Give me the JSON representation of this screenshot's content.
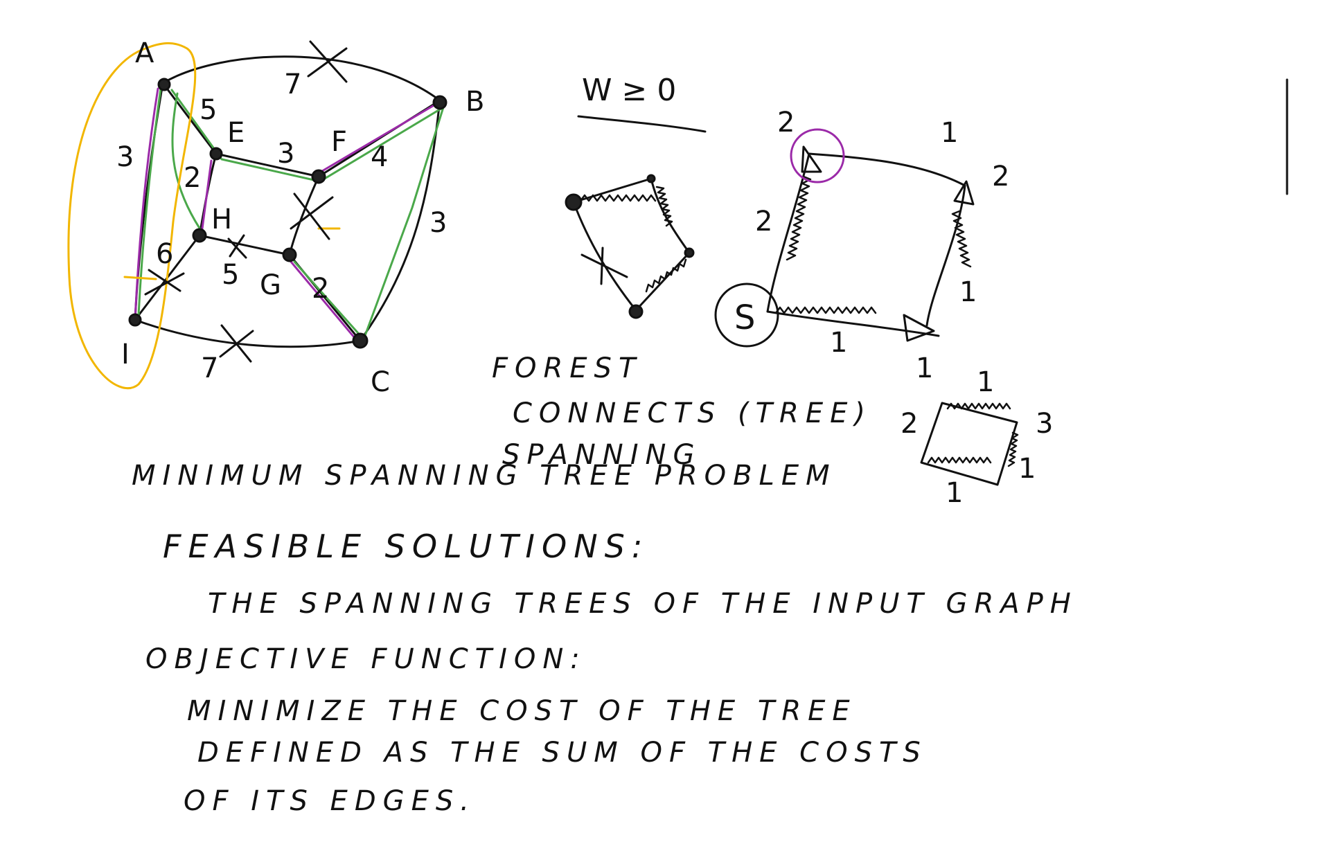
{
  "main_graph": {
    "node_labels": [
      "A",
      "B",
      "C",
      "E",
      "F",
      "H",
      "G",
      "I"
    ],
    "edge_weights": [
      "7",
      "3",
      "5",
      "3",
      "4",
      "2",
      "3",
      "2",
      "6",
      "5",
      "7"
    ]
  },
  "condition": "W ≥ 0",
  "cycle_graph": {
    "edge_weights": [
      "2",
      "1",
      "2",
      "2",
      "1",
      "1",
      "1"
    ],
    "node_label": "S"
  },
  "small_square": {
    "edge_weights": [
      "1",
      "3",
      "1",
      "1",
      "2"
    ]
  },
  "notes": {
    "forest": "FOREST",
    "connects": "CONNECTS (TREE)",
    "spanning": "SPANNING",
    "problem": "MINIMUM SPANNING TREE PROBLEM",
    "feasible": "FEASIBLE SOLUTIONS:",
    "feasible_desc": "THE SPANNING TREES OF THE INPUT GRAPH",
    "objective": "OBJECTIVE FUNCTION:",
    "obj_line1": "MINIMIZE THE COST OF THE TREE",
    "obj_line2": "DEFINED AS THE SUM OF THE COSTS",
    "obj_line3": "OF ITS EDGES."
  },
  "colors": {
    "ink": "#111111",
    "green": "#4aa84a",
    "purple": "#9b2aa8",
    "yellow": "#f2b600"
  }
}
